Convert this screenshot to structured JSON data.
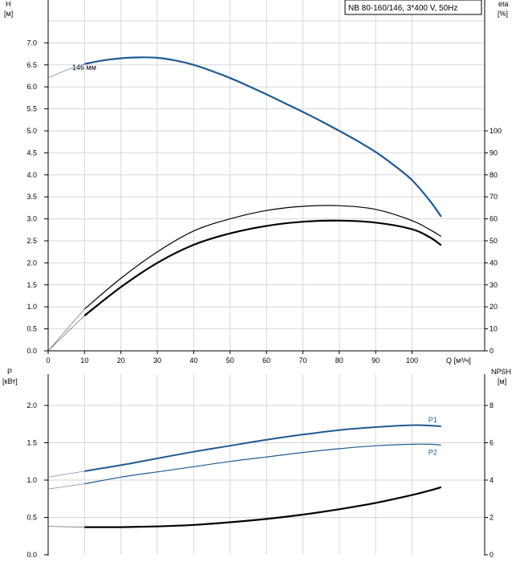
{
  "chart_data": [
    {
      "type": "line",
      "title": "NB 80-160/146, 3*400 V, 50Hz",
      "xlabel": "Q [м³/ч]",
      "ylabel_left": "H\n[м]",
      "ylabel_right": "eta\n[%]",
      "xlim": [
        0,
        107
      ],
      "ylim_left": [
        0,
        7.5
      ],
      "ylim_right_eta": [
        0,
        100
      ],
      "x_ticks": [
        "0",
        "10",
        "20",
        "30",
        "40",
        "50",
        "60",
        "70",
        "80",
        "90",
        "100"
      ],
      "y_ticks_left": [
        "0.0",
        "0.5",
        "1.0",
        "1.5",
        "2.0",
        "2.5",
        "3.0",
        "3.5",
        "4.0",
        "4.5",
        "5.0",
        "5.5",
        "6.0",
        "6.5",
        "7.0"
      ],
      "y_ticks_right": [
        "0",
        "10",
        "20",
        "30",
        "40",
        "50",
        "60",
        "70",
        "80",
        "90",
        "100"
      ],
      "grid": true,
      "annotation": "146 мм",
      "series": [
        {
          "name": "146 мм",
          "axis": "H",
          "color": "#1f5a94",
          "x": [
            10,
            15,
            20,
            25,
            30,
            35,
            40,
            45,
            50,
            55,
            60,
            65,
            70,
            75,
            80,
            85,
            90,
            95,
            100,
            105,
            108
          ],
          "y": [
            6.52,
            6.6,
            6.65,
            6.67,
            6.66,
            6.6,
            6.5,
            6.36,
            6.2,
            6.02,
            5.83,
            5.63,
            5.43,
            5.22,
            5.0,
            4.77,
            4.52,
            4.22,
            3.88,
            3.4,
            3.05
          ]
        },
        {
          "name": "",
          "axis": "H",
          "color": "#7a8fb0",
          "x": [
            0,
            5,
            10
          ],
          "y": [
            6.2,
            6.38,
            6.52
          ]
        },
        {
          "name": "",
          "axis": "eta",
          "color": "#000000",
          "x": [
            10,
            20,
            30,
            40,
            50,
            60,
            70,
            80,
            90,
            100,
            105,
            108
          ],
          "y": [
            19,
            33,
            45,
            54.5,
            60,
            63.8,
            65.7,
            66,
            64.3,
            59.2,
            55,
            52
          ]
        },
        {
          "name": "",
          "axis": "eta",
          "color": "#000000",
          "x": [
            10,
            20,
            30,
            40,
            50,
            60,
            70,
            80,
            90,
            100,
            105,
            108
          ],
          "y": [
            16,
            29,
            40,
            48.2,
            53.4,
            56.8,
            58.7,
            59.2,
            58.3,
            55.3,
            51.5,
            48
          ]
        },
        {
          "name": "",
          "axis": "eta",
          "color": "#666666",
          "x": [
            0,
            10
          ],
          "y": [
            0,
            16
          ]
        },
        {
          "name": "",
          "axis": "eta",
          "color": "#666666",
          "x": [
            0,
            10
          ],
          "y": [
            0,
            19
          ]
        }
      ]
    },
    {
      "type": "line",
      "xlabel": "",
      "ylabel_left": "P\n[кВт]",
      "ylabel_right": "NPSH\n[м]",
      "xlim": [
        0,
        107
      ],
      "ylim_left": [
        0,
        2.5
      ],
      "ylim_right": [
        0,
        10
      ],
      "y_ticks_left": [
        "0.0",
        "0.5",
        "1.0",
        "1.5",
        "2.0"
      ],
      "y_ticks_right": [
        "0",
        "2",
        "4",
        "6",
        "8"
      ],
      "grid": true,
      "series": [
        {
          "name": "P1",
          "axis": "P",
          "color": "#1f5a94",
          "x": [
            10,
            20,
            30,
            40,
            50,
            60,
            70,
            80,
            90,
            100,
            105,
            108
          ],
          "y": [
            1.12,
            1.2,
            1.29,
            1.38,
            1.46,
            1.54,
            1.61,
            1.67,
            1.71,
            1.735,
            1.73,
            1.72
          ]
        },
        {
          "name": "P2",
          "axis": "P",
          "color": "#1f5a94",
          "x": [
            10,
            20,
            30,
            40,
            50,
            60,
            70,
            80,
            90,
            100,
            105,
            108
          ],
          "y": [
            0.95,
            1.04,
            1.11,
            1.18,
            1.25,
            1.31,
            1.37,
            1.42,
            1.46,
            1.48,
            1.48,
            1.47
          ]
        },
        {
          "name": "",
          "axis": "P",
          "color": "#7a8fb0",
          "x": [
            0,
            10
          ],
          "y": [
            1.04,
            1.12
          ]
        },
        {
          "name": "",
          "axis": "P",
          "color": "#7a8fb0",
          "x": [
            0,
            10
          ],
          "y": [
            0.88,
            0.95
          ]
        },
        {
          "name": "",
          "axis": "NPSH",
          "color": "#000000",
          "x": [
            10,
            20,
            30,
            40,
            50,
            60,
            70,
            80,
            90,
            100,
            105,
            108
          ],
          "y": [
            1.48,
            1.48,
            1.52,
            1.6,
            1.74,
            1.92,
            2.15,
            2.44,
            2.78,
            3.2,
            3.45,
            3.62
          ]
        },
        {
          "name": "",
          "axis": "NPSH",
          "color": "#666666",
          "x": [
            0,
            10
          ],
          "y": [
            1.52,
            1.48
          ]
        }
      ]
    }
  ]
}
